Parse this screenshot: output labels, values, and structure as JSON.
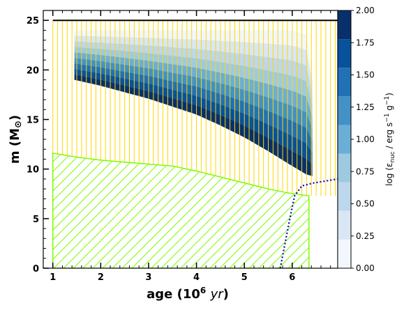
{
  "chart_data": {
    "type": "kippenhahn",
    "xlabel": "age (10",
    "xlabel_sup": "6",
    "xlabel_unit": "yr",
    "xlabel_close": ")",
    "ylabel": "m (M",
    "ylabel_sym": "⊙",
    "ylabel_close": ")",
    "x_ticks": [
      "1",
      "2",
      "3",
      "4",
      "5",
      "6"
    ],
    "y_ticks": [
      "0",
      "5",
      "10",
      "15",
      "20",
      "25"
    ],
    "xlim": [
      0.8,
      6.95
    ],
    "ylim": [
      0,
      26
    ],
    "colorbar": {
      "label_main": "log (ε",
      "label_sub": "nuc",
      "label_tail": " / erg s",
      "label_exp1": "−1",
      "label_mid": " g",
      "label_exp2": "−1",
      "label_close": ")",
      "range": [
        0,
        2
      ],
      "ticks": [
        "0.00",
        "0.25",
        "0.50",
        "0.75",
        "1.00",
        "1.25",
        "1.50",
        "1.75",
        "2.00"
      ],
      "colors": [
        "#f2f7fd",
        "#d9e7f5",
        "#bdd7ec",
        "#9ecae1",
        "#6baed6",
        "#4292c6",
        "#2171b5",
        "#08519c",
        "#08306b"
      ]
    },
    "total_mass": 25,
    "convective_core_boundary": [
      [
        1.0,
        11.6
      ],
      [
        1.5,
        11.2
      ],
      [
        2.0,
        10.9
      ],
      [
        2.5,
        10.7
      ],
      [
        3.0,
        10.5
      ],
      [
        3.5,
        10.3
      ],
      [
        4.0,
        9.8
      ],
      [
        4.5,
        9.2
      ],
      [
        5.0,
        8.6
      ],
      [
        5.5,
        8.0
      ],
      [
        5.9,
        7.6
      ],
      [
        6.2,
        7.4
      ],
      [
        6.35,
        7.3
      ]
    ],
    "burning_region_top": [
      [
        1.45,
        24.0
      ],
      [
        2.0,
        24.0
      ],
      [
        3.0,
        24.0
      ],
      [
        4.0,
        24.0
      ],
      [
        5.0,
        24.0
      ],
      [
        5.5,
        24.0
      ],
      [
        6.0,
        24.0
      ],
      [
        6.35,
        23.5
      ],
      [
        6.42,
        20.0
      ]
    ],
    "burning_region_bottom": [
      [
        1.45,
        19.0
      ],
      [
        2.0,
        18.4
      ],
      [
        3.0,
        17.1
      ],
      [
        4.0,
        15.5
      ],
      [
        4.5,
        14.4
      ],
      [
        5.0,
        13.2
      ],
      [
        5.5,
        11.8
      ],
      [
        6.0,
        10.3
      ],
      [
        6.35,
        9.3
      ]
    ],
    "he_core_mass": [
      [
        5.75,
        0.0
      ],
      [
        5.85,
        2.5
      ],
      [
        5.95,
        5.0
      ],
      [
        6.05,
        7.3
      ],
      [
        6.2,
        8.3
      ],
      [
        6.45,
        8.6
      ],
      [
        6.7,
        8.8
      ],
      [
        6.95,
        9.0
      ]
    ]
  }
}
